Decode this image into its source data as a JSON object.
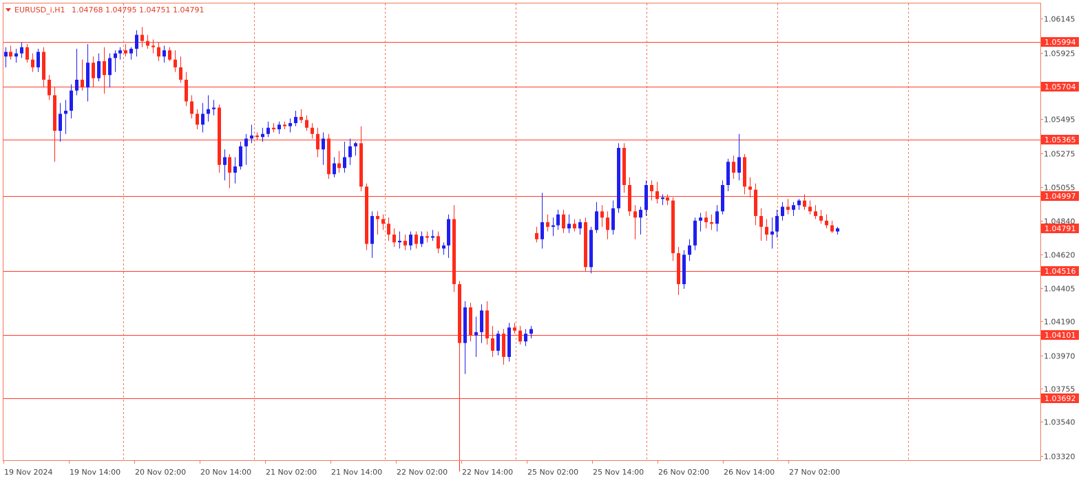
{
  "header": {
    "symbol": "EURUSD_i,H1",
    "ohlc": "1.04768 1.04795 1.04751 1.04791"
  },
  "colors": {
    "bull": "#1f1ff0",
    "bear": "#ff2a1a",
    "grid": "#f07a5a",
    "level": "#ff3a2a",
    "axis_text": "#444444",
    "frame": "#f07a5a"
  },
  "chart_data": {
    "type": "candlestick",
    "ylim": [
      1.032,
      1.0625
    ],
    "grid": "vertical dashed at day/time labels",
    "current_price": "1.04791",
    "y_ticks": [
      "1.06145",
      "1.05925",
      "1.05495",
      "1.05275",
      "1.05055",
      "1.04840",
      "1.04620",
      "1.04405",
      "1.04190",
      "1.03970",
      "1.03755",
      "1.03540",
      "1.03320"
    ],
    "levels": [
      "1.05994",
      "1.05704",
      "1.05365",
      "1.04997",
      "1.04516",
      "1.04101",
      "1.03692"
    ],
    "time_labels": [
      "19 Nov 2024",
      "19 Nov 14:00",
      "20 Nov 02:00",
      "20 Nov 14:00",
      "21 Nov 02:00",
      "21 Nov 14:00",
      "22 Nov 02:00",
      "22 Nov 14:00",
      "25 Nov 02:00",
      "25 Nov 14:00",
      "26 Nov 02:00",
      "26 Nov 14:00",
      "27 Nov 02:00"
    ],
    "segments": [
      {
        "label": "19 Nov 2024",
        "candles": [
          [
            1.059,
            1.0596,
            1.0583,
            1.0593
          ],
          [
            1.0593,
            1.0597,
            1.0588,
            1.059
          ],
          [
            1.059,
            1.0595,
            1.0586,
            1.0592
          ],
          [
            1.0592,
            1.0599,
            1.0589,
            1.0596
          ],
          [
            1.0596,
            1.0598,
            1.0586,
            1.0588
          ],
          [
            1.0588,
            1.0592,
            1.058,
            1.0583
          ],
          [
            1.0583,
            1.0595,
            1.058,
            1.0593
          ],
          [
            1.0593,
            1.0596,
            1.057,
            1.0575
          ],
          [
            1.0575,
            1.0578,
            1.0562,
            1.0565
          ],
          [
            1.0565,
            1.057,
            1.0522,
            1.0542
          ],
          [
            1.0542,
            1.056,
            1.0535,
            1.0553
          ],
          [
            1.0553,
            1.0562,
            1.054,
            1.0555
          ],
          [
            1.0555,
            1.0572,
            1.055,
            1.0568
          ],
          [
            1.0568,
            1.0595,
            1.0565,
            1.0575
          ],
          [
            1.0575,
            1.0588,
            1.0568,
            1.057
          ]
        ]
      },
      {
        "label": "19 Nov 14:00",
        "candles": [
          [
            1.057,
            1.0598,
            1.0561,
            1.0586
          ],
          [
            1.0586,
            1.059,
            1.057,
            1.0576
          ],
          [
            1.0576,
            1.0592,
            1.0574,
            1.0587
          ],
          [
            1.0587,
            1.0596,
            1.0566,
            1.0578
          ],
          [
            1.0578,
            1.0592,
            1.057,
            1.0589
          ],
          [
            1.0589,
            1.0594,
            1.058,
            1.0592
          ],
          [
            1.0592,
            1.0596,
            1.0588,
            1.0594
          ],
          [
            1.0594,
            1.0598,
            1.059,
            1.0592
          ],
          [
            1.0592,
            1.0596,
            1.0588,
            1.0595
          ]
        ]
      },
      {
        "label": "20 Nov 02:00",
        "candles": [
          [
            1.0595,
            1.0607,
            1.059,
            1.0604
          ],
          [
            1.0604,
            1.0609,
            1.0596,
            1.06
          ],
          [
            1.06,
            1.0604,
            1.0595,
            1.0597
          ],
          [
            1.0597,
            1.0601,
            1.0592,
            1.0596
          ],
          [
            1.0596,
            1.0599,
            1.0587,
            1.059
          ],
          [
            1.059,
            1.0597,
            1.0586,
            1.0594
          ],
          [
            1.0594,
            1.0596,
            1.0587,
            1.0588
          ],
          [
            1.0588,
            1.0594,
            1.058,
            1.0583
          ],
          [
            1.0583,
            1.059,
            1.0573,
            1.0575
          ],
          [
            1.0575,
            1.058,
            1.0558,
            1.0561
          ],
          [
            1.0561,
            1.0565,
            1.055,
            1.0553
          ],
          [
            1.0553,
            1.0556,
            1.0543,
            1.0546
          ],
          [
            1.0546,
            1.056,
            1.0541,
            1.0553
          ],
          [
            1.0553,
            1.0565,
            1.0548,
            1.0556
          ],
          [
            1.0556,
            1.0562,
            1.0552,
            1.0557
          ],
          [
            1.0557,
            1.0559,
            1.0515,
            1.052
          ]
        ]
      },
      {
        "label": "20 Nov 14:00",
        "candles": [
          [
            1.052,
            1.053,
            1.051,
            1.0525
          ],
          [
            1.0525,
            1.0527,
            1.0505,
            1.0515
          ],
          [
            1.0515,
            1.0525,
            1.0508,
            1.0519
          ],
          [
            1.0519,
            1.0535,
            1.0517,
            1.0532
          ],
          [
            1.0532,
            1.054,
            1.052,
            1.0537
          ],
          [
            1.0537,
            1.0546,
            1.0534,
            1.0539
          ],
          [
            1.0539,
            1.0541,
            1.0536,
            1.0538
          ],
          [
            1.0538,
            1.0544,
            1.0535,
            1.054
          ],
          [
            1.054,
            1.0548,
            1.0538,
            1.0544
          ],
          [
            1.0544,
            1.0547,
            1.0541,
            1.0543
          ],
          [
            1.0543,
            1.0548,
            1.054,
            1.0546
          ],
          [
            1.0546,
            1.0548,
            1.0543,
            1.0545
          ],
          [
            1.0545,
            1.055,
            1.0541,
            1.0547
          ],
          [
            1.0547,
            1.0555,
            1.0545,
            1.0551
          ],
          [
            1.0551,
            1.0556,
            1.0547,
            1.0549
          ]
        ]
      },
      {
        "label": "21 Nov 02:00",
        "candles": [
          [
            1.0549,
            1.0552,
            1.0542,
            1.0544
          ],
          [
            1.0544,
            1.0547,
            1.0537,
            1.054
          ],
          [
            1.054,
            1.0544,
            1.0525,
            1.053
          ],
          [
            1.053,
            1.0541,
            1.052,
            1.0537
          ],
          [
            1.0537,
            1.054,
            1.0511,
            1.0514
          ],
          [
            1.0514,
            1.0525,
            1.0512,
            1.0521
          ],
          [
            1.0521,
            1.0529,
            1.0515,
            1.0518
          ]
        ]
      },
      {
        "label": "21 Nov 14:00",
        "candles": [
          [
            1.0518,
            1.0535,
            1.0515,
            1.0525
          ],
          [
            1.0525,
            1.0537,
            1.052,
            1.0532
          ],
          [
            1.0532,
            1.0535,
            1.0526,
            1.0534
          ],
          [
            1.0534,
            1.0545,
            1.0503,
            1.0506
          ],
          [
            1.0506,
            1.0508,
            1.0465,
            1.0469
          ],
          [
            1.0469,
            1.049,
            1.046,
            1.0487
          ],
          [
            1.0487,
            1.049,
            1.0475,
            1.0485
          ],
          [
            1.0485,
            1.0488,
            1.0478,
            1.0482
          ],
          [
            1.0482,
            1.0486,
            1.0471,
            1.0475
          ],
          [
            1.0475,
            1.0479,
            1.0467,
            1.047
          ],
          [
            1.047,
            1.0477,
            1.0466,
            1.0471
          ],
          [
            1.0471,
            1.0475,
            1.0465,
            1.0468
          ],
          [
            1.0468,
            1.0477,
            1.0465,
            1.0475
          ],
          [
            1.0475,
            1.0477,
            1.0466,
            1.0469
          ],
          [
            1.0469,
            1.0477,
            1.0467,
            1.0474
          ]
        ]
      },
      {
        "label": "22 Nov 02:00",
        "candles": [
          [
            1.0474,
            1.0477,
            1.047,
            1.0473
          ],
          [
            1.0473,
            1.0478,
            1.0471,
            1.0474
          ],
          [
            1.0474,
            1.0477,
            1.0463,
            1.0466
          ],
          [
            1.0466,
            1.047,
            1.0462,
            1.0468
          ],
          [
            1.0468,
            1.0488,
            1.046,
            1.0485
          ],
          [
            1.0485,
            1.0494,
            1.0438,
            1.0443
          ],
          [
            1.0443,
            1.0445,
            1.0322,
            1.0405
          ],
          [
            1.0405,
            1.0432,
            1.0385,
            1.0428
          ],
          [
            1.0428,
            1.0431,
            1.0406,
            1.041
          ],
          [
            1.041,
            1.0422,
            1.0396,
            1.0412
          ],
          [
            1.0412,
            1.043,
            1.0405,
            1.0426
          ],
          [
            1.0426,
            1.0432,
            1.0404,
            1.0408
          ],
          [
            1.0408,
            1.0416,
            1.0396,
            1.04
          ],
          [
            1.04,
            1.0413,
            1.0397,
            1.0411
          ],
          [
            1.0411,
            1.0414,
            1.0391,
            1.0396
          ],
          [
            1.0396,
            1.0418,
            1.0393,
            1.0415
          ]
        ]
      },
      {
        "label": "22 Nov 14:00",
        "candles": [
          [
            1.0415,
            1.0418,
            1.0411,
            1.0413
          ],
          [
            1.0413,
            1.0416,
            1.0404,
            1.0406
          ],
          [
            1.0406,
            1.0414,
            1.0403,
            1.0411
          ],
          [
            1.0411,
            1.0416,
            1.0408,
            1.0414
          ]
        ]
      },
      {
        "label": "25 Nov 02:00",
        "candles": [
          [
            1.0476,
            1.048,
            1.047,
            1.0472
          ],
          [
            1.0472,
            1.0502,
            1.0466,
            1.0483
          ],
          [
            1.0483,
            1.0488,
            1.0477,
            1.048
          ],
          [
            1.048,
            1.0486,
            1.0474,
            1.0481
          ],
          [
            1.0481,
            1.0491,
            1.0478,
            1.0488
          ],
          [
            1.0488,
            1.0491,
            1.0476,
            1.0479
          ],
          [
            1.0479,
            1.0488,
            1.0476,
            1.0482
          ],
          [
            1.0482,
            1.0485,
            1.0477,
            1.0479
          ],
          [
            1.0479,
            1.0485,
            1.0475,
            1.0483
          ],
          [
            1.0483,
            1.0486,
            1.0451,
            1.0454
          ],
          [
            1.0454,
            1.048,
            1.045,
            1.0478
          ],
          [
            1.0478,
            1.0496,
            1.0476,
            1.049
          ]
        ]
      },
      {
        "label": "25 Nov 14:00",
        "candles": [
          [
            1.049,
            1.0494,
            1.048,
            1.0486
          ],
          [
            1.0486,
            1.049,
            1.0472,
            1.0478
          ],
          [
            1.0478,
            1.0497,
            1.0475,
            1.0492
          ],
          [
            1.0492,
            1.0534,
            1.0489,
            1.0531
          ],
          [
            1.0531,
            1.0534,
            1.0502,
            1.0507
          ],
          [
            1.0507,
            1.0512,
            1.0487,
            1.049
          ],
          [
            1.049,
            1.0494,
            1.0472,
            1.0486
          ],
          [
            1.0486,
            1.0493,
            1.0475,
            1.0491
          ],
          [
            1.0491,
            1.051,
            1.0487,
            1.0507
          ],
          [
            1.0507,
            1.051,
            1.0497,
            1.0503
          ],
          [
            1.0503,
            1.0509,
            1.0495,
            1.0498
          ],
          [
            1.0498,
            1.0501,
            1.0494,
            1.0499
          ],
          [
            1.0499,
            1.0501,
            1.0494,
            1.0497
          ]
        ]
      },
      {
        "label": "26 Nov 02:00",
        "candles": [
          [
            1.0497,
            1.0499,
            1.0458,
            1.0463
          ],
          [
            1.0463,
            1.0467,
            1.0436,
            1.0443
          ],
          [
            1.0443,
            1.0465,
            1.044,
            1.0462
          ],
          [
            1.0462,
            1.0472,
            1.0458,
            1.0468
          ],
          [
            1.0468,
            1.0486,
            1.0465,
            1.0484
          ],
          [
            1.0484,
            1.0489,
            1.0477,
            1.0486
          ],
          [
            1.0486,
            1.049,
            1.0479,
            1.0483
          ],
          [
            1.0483,
            1.0488,
            1.0478,
            1.0482
          ],
          [
            1.0482,
            1.0494,
            1.0477,
            1.049
          ],
          [
            1.049,
            1.051,
            1.0488,
            1.0507
          ],
          [
            1.0507,
            1.0524,
            1.0503,
            1.0522
          ],
          [
            1.0522,
            1.0526,
            1.0511,
            1.0515
          ],
          [
            1.0515,
            1.054,
            1.051,
            1.0525
          ]
        ]
      },
      {
        "label": "26 Nov 14:00",
        "candles": [
          [
            1.0525,
            1.0527,
            1.0501,
            1.0506
          ],
          [
            1.0506,
            1.0512,
            1.0499,
            1.0504
          ],
          [
            1.0504,
            1.0508,
            1.0481,
            1.0487
          ],
          [
            1.0487,
            1.0492,
            1.0471,
            1.048
          ],
          [
            1.048,
            1.0485,
            1.0471,
            1.0475
          ],
          [
            1.0475,
            1.0486,
            1.0466,
            1.0477
          ],
          [
            1.0477,
            1.0491,
            1.0473,
            1.0487
          ],
          [
            1.0487,
            1.0496,
            1.0484,
            1.0493
          ],
          [
            1.0493,
            1.0498,
            1.0488,
            1.0491
          ],
          [
            1.0491,
            1.0496,
            1.0487,
            1.0494
          ],
          [
            1.0494,
            1.0498,
            1.0491,
            1.0497
          ],
          [
            1.0497,
            1.0501,
            1.0491,
            1.0493
          ]
        ]
      },
      {
        "label": "27 Nov 02:00",
        "candles": [
          [
            1.0493,
            1.0497,
            1.0488,
            1.049
          ],
          [
            1.049,
            1.0494,
            1.0485,
            1.0487
          ],
          [
            1.0487,
            1.0491,
            1.0482,
            1.0484
          ],
          [
            1.0484,
            1.0488,
            1.0479,
            1.0481
          ],
          [
            1.0481,
            1.0484,
            1.0476,
            1.0477
          ],
          [
            1.0477,
            1.048,
            1.0475,
            1.0479
          ]
        ]
      }
    ]
  }
}
